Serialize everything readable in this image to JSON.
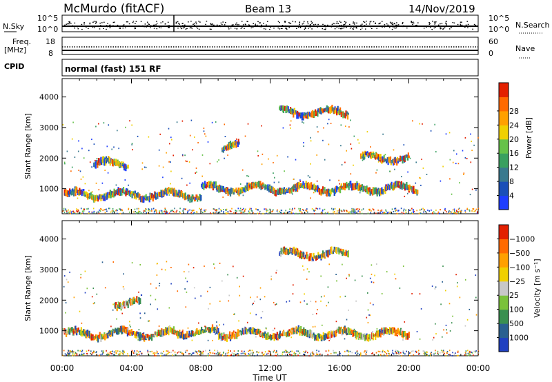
{
  "header": {
    "station": "McMurdo (fitACF)",
    "beam": "Beam 13",
    "date": "14/Nov/2019"
  },
  "noise_panel": {
    "left_label": "N.Sky",
    "right_label": "N.Search",
    "left_ticks": [
      "10^5",
      "10^0"
    ],
    "right_ticks": [
      "10^5",
      "10^0"
    ]
  },
  "freq_panel": {
    "left_label": "Freq.",
    "left_unit": "[MHz]",
    "left_ticks": [
      "18",
      "8"
    ],
    "right_label": "Nave",
    "right_ticks": [
      "60",
      "0"
    ]
  },
  "cpid": {
    "label": "CPID",
    "value": "normal (fast) 151 RF"
  },
  "chart_data": [
    {
      "type": "heatmap",
      "title": "",
      "ylabel": "Slant Range [km]",
      "xlabel": "",
      "x_range": [
        "00:00",
        "24:00"
      ],
      "ylim": [
        180,
        4600
      ],
      "yticks": [
        1000,
        2000,
        3000,
        4000
      ],
      "colorbar": {
        "label": "Power [dB]",
        "ticks": [
          "4",
          "8",
          "12",
          "16",
          "20",
          "24",
          "28"
        ],
        "colors": [
          "#1e3dff",
          "#1a4fb8",
          "#3a7a8e",
          "#3aa060",
          "#66c24a",
          "#f0d000",
          "#ffa000",
          "#ff6a00",
          "#e32000"
        ]
      },
      "echo_bands": [
        {
          "t_start": 0.1,
          "t_end": 8.0,
          "range_km": 800,
          "level": "12-24"
        },
        {
          "t_start": 8.0,
          "t_end": 20.5,
          "range_km": 1000,
          "level": "8-24"
        },
        {
          "t_start": 1.8,
          "t_end": 3.8,
          "range_km": 1800,
          "level": "12-20"
        },
        {
          "t_start": 9.2,
          "t_end": 10.2,
          "range_km": 2400,
          "level": "12-20"
        },
        {
          "t_start": 12.5,
          "t_end": 16.5,
          "range_km": 3500,
          "level": "8-24"
        },
        {
          "t_start": 17.2,
          "t_end": 20.0,
          "range_km": 2000,
          "level": "4-12"
        }
      ]
    },
    {
      "type": "heatmap",
      "title": "",
      "ylabel": "Slant Range [km]",
      "xlabel": "Time UT",
      "x": [
        "00:00",
        "04:00",
        "08:00",
        "12:00",
        "16:00",
        "20:00",
        "00:00"
      ],
      "ylim": [
        180,
        4600
      ],
      "yticks": [
        1000,
        2000,
        3000,
        4000
      ],
      "colorbar": {
        "label": "Velocity [m s⁻¹]",
        "ticks": [
          "1000",
          "500",
          "100",
          "25",
          "−25",
          "−100",
          "−500",
          "−1000"
        ],
        "colors": [
          "#2040c0",
          "#2a6090",
          "#3a9050",
          "#7ac23a",
          "#c8c8c8",
          "#f0d000",
          "#ffa000",
          "#ff6a00",
          "#e32000"
        ]
      },
      "echo_bands": [
        {
          "t_start": 0.1,
          "t_end": 6.5,
          "range_km": 900,
          "velocity": "25-500"
        },
        {
          "t_start": 6.5,
          "t_end": 9.0,
          "range_km": 950,
          "velocity": "-25 to 25"
        },
        {
          "t_start": 9.0,
          "t_end": 20.0,
          "range_km": 900,
          "velocity": "-100 to -500"
        },
        {
          "t_start": 12.5,
          "t_end": 16.5,
          "range_km": 3500,
          "velocity": "-100 to -500"
        },
        {
          "t_start": 3.0,
          "t_end": 4.5,
          "range_km": 1900,
          "velocity": "-100 to -500"
        }
      ]
    }
  ]
}
